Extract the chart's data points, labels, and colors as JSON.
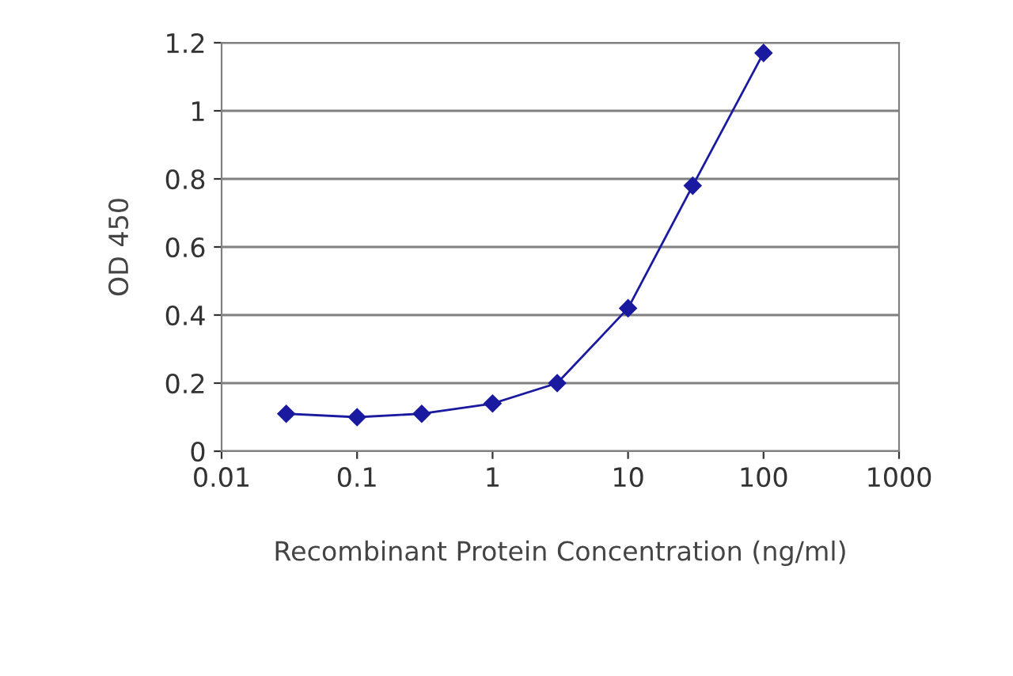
{
  "chart_data": {
    "type": "line",
    "xlabel": "Recombinant Protein Concentration (ng/ml)",
    "ylabel": "OD 450",
    "x": [
      0.03,
      0.1,
      0.3,
      1,
      3,
      10,
      30,
      100
    ],
    "series": [
      {
        "color": "#1a1aa0",
        "values": [
          0.11,
          0.1,
          0.11,
          0.14,
          0.2,
          0.42,
          0.78,
          1.17
        ]
      }
    ],
    "log": "x",
    "xlim": [
      0.01,
      1000
    ],
    "xticks": [
      0.01,
      0.1,
      1,
      10,
      100,
      1000
    ],
    "ylim": [
      0,
      1.2
    ],
    "yticks": [
      0,
      0.2,
      0.4,
      0.6,
      0.8,
      1,
      1.2
    ],
    "grid": "y",
    "marker": "diamond",
    "line_style": "solid"
  }
}
